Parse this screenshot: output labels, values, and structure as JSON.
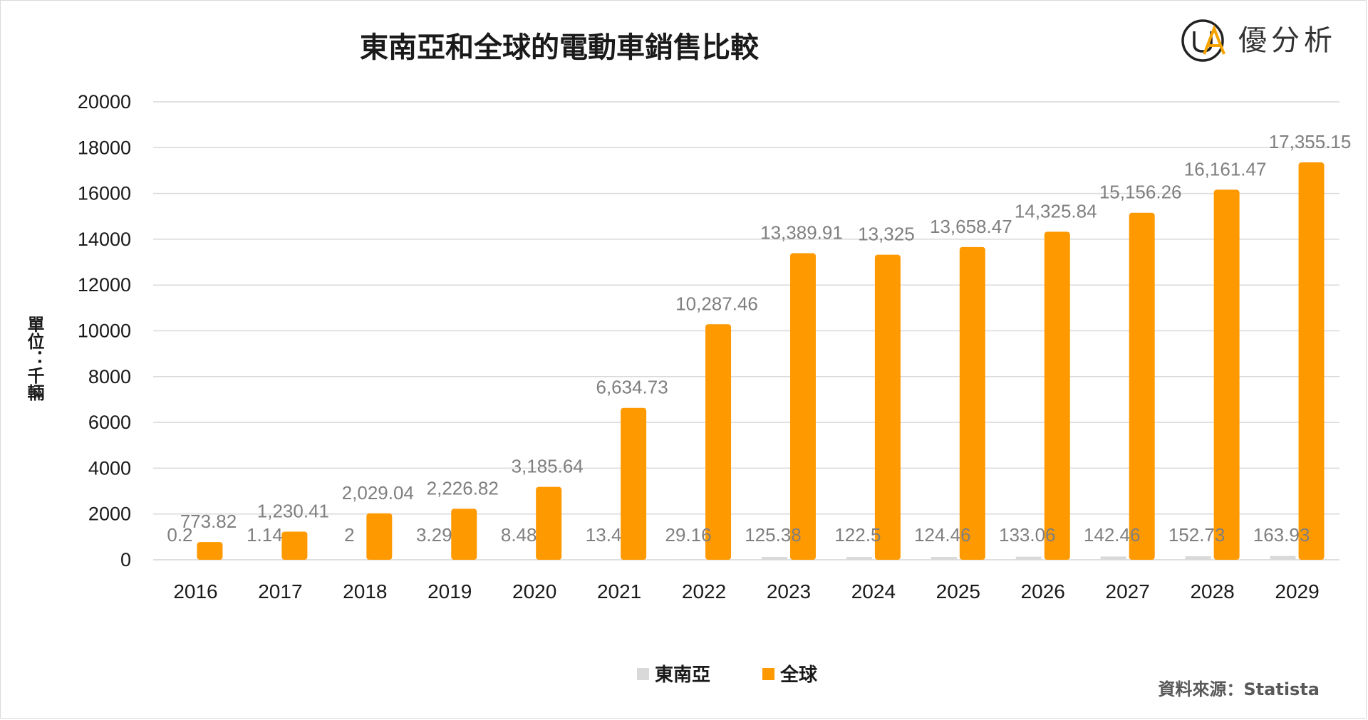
{
  "logo": {
    "text": "優分析",
    "mark": "UA"
  },
  "source": "資料來源：Statista",
  "colors": {
    "sea": "#d9d9d9",
    "global": "#ff9900",
    "grid": "#d9d9d9"
  },
  "chart_data": {
    "type": "bar",
    "title": "東南亞和全球的電動車銷售比較",
    "ylabel": "單位：千輛",
    "xlabel": "",
    "ylim": [
      0,
      20000
    ],
    "yticks": [
      "0",
      "2000",
      "4000",
      "6000",
      "8000",
      "10000",
      "12000",
      "14000",
      "16000",
      "18000",
      "20000"
    ],
    "categories": [
      "2016",
      "2017",
      "2018",
      "2019",
      "2020",
      "2021",
      "2022",
      "2023",
      "2024",
      "2025",
      "2026",
      "2027",
      "2028",
      "2029"
    ],
    "legend_position": "bottom",
    "grid": true,
    "series": [
      {
        "name": "東南亞",
        "values": [
          0.2,
          1.14,
          2,
          3.29,
          8.48,
          13.4,
          29.16,
          125.38,
          122.5,
          124.46,
          133.06,
          142.46,
          152.73,
          163.93
        ],
        "labels": [
          "0.2",
          "1.14",
          "2",
          "3.29",
          "8.48",
          "13.4",
          "29.16",
          "125.38",
          "122.5",
          "124.46",
          "133.06",
          "142.46",
          "152.73",
          "163.93"
        ]
      },
      {
        "name": "全球",
        "values": [
          773.82,
          1230.41,
          2029.04,
          2226.82,
          3185.64,
          6634.73,
          10287.46,
          13389.91,
          13325,
          13658.47,
          14325.84,
          15156.26,
          16161.47,
          17355.15
        ],
        "labels": [
          "773.82",
          "1,230.41",
          "2,029.04",
          "2,226.82",
          "3,185.64",
          "6,634.73",
          "10,287.46",
          "13,389.91",
          "13,325",
          "13,658.47",
          "14,325.84",
          "15,156.26",
          "16,161.47",
          "17,355.15"
        ]
      }
    ]
  }
}
